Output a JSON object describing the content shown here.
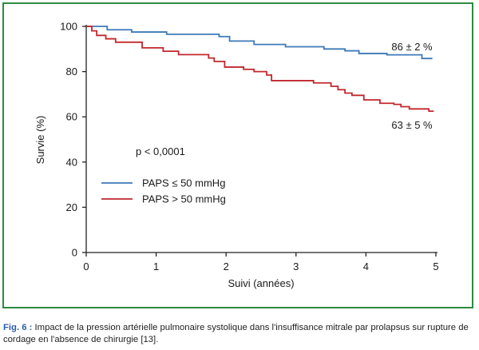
{
  "chart_data": {
    "type": "line",
    "subtype": "kaplan-meier",
    "xlabel": "Suivi (années)",
    "ylabel": "Survie (%)",
    "xlim": [
      0,
      5
    ],
    "ylim": [
      0,
      100
    ],
    "xticks": [
      "0",
      "1",
      "2",
      "3",
      "4",
      "5"
    ],
    "yticks": [
      "0",
      "20",
      "40",
      "60",
      "80",
      "100"
    ],
    "grid": false,
    "legend_position": "left-middle",
    "pvalue": "p < 0,0001",
    "series": [
      {
        "name": "PAPS ≤ 50 mmHg",
        "color": "#3d7ab8",
        "end_label": "86 ± 2 %",
        "steps": [
          [
            0,
            100
          ],
          [
            0.3,
            98.5
          ],
          [
            0.65,
            97.5
          ],
          [
            1.15,
            96.5
          ],
          [
            1.9,
            95.5
          ],
          [
            2.05,
            93.5
          ],
          [
            2.4,
            92
          ],
          [
            2.85,
            91
          ],
          [
            3.4,
            90
          ],
          [
            3.7,
            89.2
          ],
          [
            3.9,
            88
          ],
          [
            4.3,
            87.4
          ],
          [
            4.8,
            85.8
          ],
          [
            4.95,
            85.8
          ]
        ]
      },
      {
        "name": "PAPS > 50 mmHg",
        "color": "#c1272d",
        "end_label": "63 ± 5 %",
        "steps": [
          [
            0,
            100
          ],
          [
            0.08,
            98
          ],
          [
            0.15,
            96
          ],
          [
            0.28,
            94.5
          ],
          [
            0.42,
            93
          ],
          [
            0.8,
            90.5
          ],
          [
            1.1,
            89
          ],
          [
            1.32,
            87.5
          ],
          [
            1.75,
            86
          ],
          [
            1.83,
            84.5
          ],
          [
            1.98,
            82
          ],
          [
            2.25,
            81
          ],
          [
            2.4,
            80
          ],
          [
            2.58,
            78.5
          ],
          [
            2.65,
            76
          ],
          [
            3.25,
            75
          ],
          [
            3.5,
            73.5
          ],
          [
            3.6,
            72
          ],
          [
            3.7,
            70.5
          ],
          [
            3.8,
            69.5
          ],
          [
            3.97,
            67.5
          ],
          [
            4.2,
            66
          ],
          [
            4.4,
            65.5
          ],
          [
            4.5,
            64.5
          ],
          [
            4.62,
            63.5
          ],
          [
            4.9,
            62.5
          ],
          [
            4.97,
            62.5
          ]
        ]
      }
    ]
  },
  "caption": {
    "label": "Fig. 6 :",
    "text": " Impact de la pression artérielle pulmonaire systolique dans l'insuffisance mitrale par prolapsus sur rupture de cordage en l'absence de chirurgie [13]."
  }
}
